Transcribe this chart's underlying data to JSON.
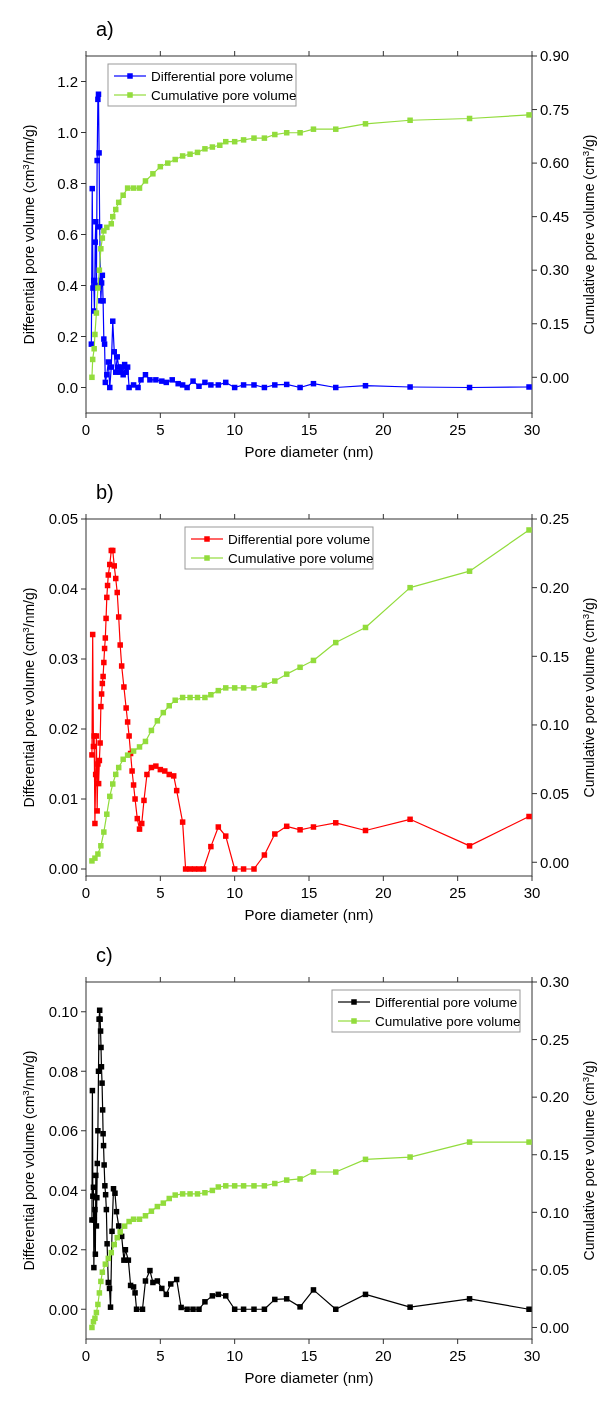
{
  "chart_data": [
    {
      "type": "line",
      "title": "a)",
      "xlabel": "Pore diameter (nm)",
      "ylabel": "Differential pore volume  (cm$^{3}$/nm/g)",
      "y2label": "Cumulative pore volume (cm$^{3}$/g)",
      "xlim": [
        0,
        30
      ],
      "xticks": [
        0,
        5,
        10,
        15,
        20,
        25,
        30
      ],
      "ylim": [
        -0.1,
        1.3
      ],
      "yticks": [
        {
          "value": 0,
          "label": "0.0"
        },
        {
          "value": 0.2,
          "label": "0.2"
        },
        {
          "value": 0.4,
          "label": "0.4"
        },
        {
          "value": 0.6,
          "label": "0.6"
        },
        {
          "value": 0.8,
          "label": "0.8"
        },
        {
          "value": 1,
          "label": "1.0"
        },
        {
          "value": 1.2,
          "label": "1.2"
        }
      ],
      "y2lim": [
        -0.1,
        0.9
      ],
      "y2ticks": [
        {
          "value": 0,
          "label": "0.00"
        },
        {
          "value": 0.15,
          "label": "0.15"
        },
        {
          "value": 0.3,
          "label": "0.30"
        },
        {
          "value": 0.45,
          "label": "0.45"
        },
        {
          "value": 0.6,
          "label": "0.60"
        },
        {
          "value": 0.75,
          "label": "0.75"
        },
        {
          "value": 0.9,
          "label": "0.90"
        }
      ],
      "marker": "square",
      "line_style": "solid",
      "grid": false,
      "legend": "top left",
      "series": [
        {
          "name": "Differential pore volume",
          "color": "#0000ff",
          "x": [
            0.36,
            0.42,
            0.47,
            0.52,
            0.57,
            0.62,
            0.66,
            0.7,
            0.75,
            0.8,
            0.84,
            0.88,
            0.92,
            0.97,
            1.0,
            1.05,
            1.1,
            1.15,
            1.2,
            1.25,
            1.3,
            1.4,
            1.5,
            1.6,
            1.7,
            1.8,
            1.9,
            2.0,
            2.1,
            2.2,
            2.3,
            2.4,
            2.5,
            2.6,
            2.7,
            2.8,
            2.9,
            3.2,
            3.5,
            3.7,
            4.0,
            4.3,
            4.7,
            5.1,
            5.4,
            5.8,
            6.2,
            6.5,
            6.8,
            7.2,
            7.6,
            8.0,
            8.4,
            8.9,
            9.4,
            10.0,
            10.6,
            11.3,
            12.0,
            12.7,
            13.5,
            14.4,
            15.3,
            16.8,
            18.8,
            21.8,
            25.8,
            29.8
          ],
          "values": [
            0.17,
            0.78,
            0.39,
            0.42,
            0.3,
            0.57,
            0.65,
            0.4,
            0.89,
            1.13,
            1.15,
            0.92,
            0.63,
            0.42,
            0.34,
            0.41,
            0.44,
            0.34,
            0.19,
            0.17,
            0.02,
            0.05,
            0.1,
            0.0,
            0.08,
            0.26,
            0.14,
            0.06,
            0.12,
            0.08,
            0.06,
            0.08,
            0.05,
            0.09,
            0.06,
            0.08,
            0.0,
            0.01,
            0.0,
            0.03,
            0.05,
            0.03,
            0.03,
            0.025,
            0.02,
            0.03,
            0.015,
            0.01,
            0.0,
            0.025,
            0.005,
            0.02,
            0.01,
            0.01,
            0.02,
            0.0,
            0.01,
            0.01,
            0.0,
            0.01,
            0.012,
            0.0,
            0.015,
            0.0,
            0.007,
            0.002,
            0.0,
            0.002
          ]
        },
        {
          "name": "Cumulative pore volume",
          "color": "#92dc3c",
          "axis": "y2",
          "x": [
            0.4,
            0.45,
            0.55,
            0.6,
            0.7,
            0.8,
            0.9,
            1.0,
            1.1,
            1.2,
            1.4,
            1.7,
            1.8,
            2.0,
            2.2,
            2.5,
            2.8,
            3.2,
            3.6,
            4.0,
            4.5,
            5.0,
            5.5,
            6.0,
            6.5,
            7.0,
            7.5,
            8.0,
            8.5,
            9.0,
            9.4,
            10.0,
            10.6,
            11.3,
            12.0,
            12.7,
            13.5,
            14.4,
            15.3,
            16.8,
            18.8,
            21.8,
            25.8,
            29.8
          ],
          "values": [
            0.0,
            0.05,
            0.08,
            0.12,
            0.18,
            0.25,
            0.3,
            0.36,
            0.39,
            0.41,
            0.42,
            0.43,
            0.45,
            0.47,
            0.49,
            0.51,
            0.53,
            0.53,
            0.53,
            0.55,
            0.57,
            0.59,
            0.6,
            0.61,
            0.62,
            0.625,
            0.63,
            0.64,
            0.645,
            0.65,
            0.66,
            0.66,
            0.665,
            0.67,
            0.67,
            0.68,
            0.685,
            0.685,
            0.695,
            0.695,
            0.71,
            0.72,
            0.725,
            0.735
          ]
        }
      ]
    },
    {
      "type": "line",
      "title": "b)",
      "xlabel": "Pore diameter (nm)",
      "ylabel": "Differential pore volume  (cm$^{3}$/nm/g)",
      "y2label": "Cumulative pore volume (cm$^{3}$/g)",
      "xlim": [
        0,
        30
      ],
      "xticks": [
        0,
        5,
        10,
        15,
        20,
        25,
        30
      ],
      "ylim": [
        -0.001,
        0.05
      ],
      "yticks": [
        {
          "value": 0,
          "label": "0.00"
        },
        {
          "value": 0.01,
          "label": "0.01"
        },
        {
          "value": 0.02,
          "label": "0.02"
        },
        {
          "value": 0.03,
          "label": "0.03"
        },
        {
          "value": 0.04,
          "label": "0.04"
        },
        {
          "value": 0.05,
          "label": "0.05"
        }
      ],
      "y2lim": [
        -0.01,
        0.25
      ],
      "y2ticks": [
        {
          "value": 0,
          "label": "0.00"
        },
        {
          "value": 0.05,
          "label": "0.05"
        },
        {
          "value": 0.1,
          "label": "0.10"
        },
        {
          "value": 0.15,
          "label": "0.15"
        },
        {
          "value": 0.2,
          "label": "0.20"
        },
        {
          "value": 0.25,
          "label": "0.25"
        }
      ],
      "marker": "square",
      "line_style": "solid",
      "grid": false,
      "legend": "top",
      "series": [
        {
          "name": "Differential pore volume",
          "color": "#ff0000",
          "x": [
            0.4,
            0.45,
            0.5,
            0.55,
            0.6,
            0.65,
            0.7,
            0.75,
            0.8,
            0.85,
            0.9,
            0.95,
            1.0,
            1.05,
            1.1,
            1.15,
            1.2,
            1.25,
            1.3,
            1.35,
            1.4,
            1.45,
            1.5,
            1.6,
            1.7,
            1.8,
            1.9,
            2.0,
            2.1,
            2.2,
            2.3,
            2.4,
            2.55,
            2.7,
            2.8,
            2.9,
            3.0,
            3.1,
            3.2,
            3.3,
            3.45,
            3.6,
            3.75,
            3.9,
            4.1,
            4.4,
            4.7,
            5.0,
            5.3,
            5.6,
            5.9,
            6.1,
            6.5,
            6.7,
            7.0,
            7.3,
            7.6,
            7.9,
            8.4,
            8.9,
            9.4,
            10.0,
            10.6,
            11.3,
            12.0,
            12.7,
            13.5,
            14.4,
            15.3,
            16.8,
            18.8,
            21.8,
            25.8,
            29.8
          ],
          "values": [
            0.0163,
            0.0335,
            0.0175,
            0.019,
            0.0065,
            0.0135,
            0.019,
            0.0083,
            0.015,
            0.0122,
            0.0155,
            0.018,
            0.0232,
            0.025,
            0.0265,
            0.0275,
            0.0295,
            0.0315,
            0.033,
            0.0358,
            0.0388,
            0.0405,
            0.042,
            0.0435,
            0.0455,
            0.0455,
            0.0433,
            0.0415,
            0.0395,
            0.036,
            0.032,
            0.029,
            0.026,
            0.023,
            0.021,
            0.019,
            0.0165,
            0.014,
            0.012,
            0.01,
            0.0072,
            0.0057,
            0.0065,
            0.0098,
            0.0135,
            0.0145,
            0.0147,
            0.0142,
            0.014,
            0.0135,
            0.0133,
            0.0112,
            0.0067,
            0.0,
            0.0,
            0.0,
            0.0,
            0.0,
            0.0032,
            0.006,
            0.0047,
            0.0,
            0.0,
            0.0,
            0.002,
            0.005,
            0.0061,
            0.0056,
            0.006,
            0.0066,
            0.0055,
            0.0071,
            0.0033,
            0.0075
          ]
        },
        {
          "name": "Cumulative pore volume",
          "color": "#92dc3c",
          "axis": "y2",
          "x": [
            0.4,
            0.6,
            0.8,
            1.0,
            1.2,
            1.4,
            1.6,
            1.8,
            2.0,
            2.2,
            2.5,
            2.8,
            3.2,
            3.6,
            4.0,
            4.4,
            4.8,
            5.2,
            5.6,
            6.0,
            6.5,
            7.0,
            7.5,
            8.0,
            8.4,
            8.9,
            9.4,
            10.0,
            10.6,
            11.3,
            12.0,
            12.7,
            13.5,
            14.4,
            15.3,
            16.8,
            18.8,
            21.8,
            25.8,
            29.8
          ],
          "values": [
            0.001,
            0.003,
            0.006,
            0.012,
            0.022,
            0.035,
            0.048,
            0.057,
            0.064,
            0.069,
            0.075,
            0.078,
            0.081,
            0.084,
            0.088,
            0.096,
            0.103,
            0.109,
            0.114,
            0.118,
            0.12,
            0.12,
            0.12,
            0.12,
            0.122,
            0.125,
            0.127,
            0.127,
            0.127,
            0.127,
            0.129,
            0.132,
            0.137,
            0.142,
            0.147,
            0.16,
            0.171,
            0.2,
            0.212,
            0.242
          ]
        }
      ]
    },
    {
      "type": "line",
      "title": "c)",
      "xlabel": "Pore diameter (nm)",
      "ylabel": "Differential pore volume  (cm$^{3}$/nm/g)",
      "y2label": "Cumulative pore volume (cm$^{3}$/g)",
      "xlim": [
        0,
        30
      ],
      "xticks": [
        0,
        5,
        10,
        15,
        20,
        25,
        30
      ],
      "ylim": [
        -0.01,
        0.11
      ],
      "yticks": [
        {
          "value": 0,
          "label": "0.00"
        },
        {
          "value": 0.02,
          "label": "0.02"
        },
        {
          "value": 0.04,
          "label": "0.04"
        },
        {
          "value": 0.06,
          "label": "0.06"
        },
        {
          "value": 0.08,
          "label": "0.08"
        },
        {
          "value": 0.1,
          "label": "0.10"
        }
      ],
      "y2lim": [
        -0.01,
        0.3
      ],
      "y2ticks": [
        {
          "value": 0,
          "label": "0.00"
        },
        {
          "value": 0.05,
          "label": "0.05"
        },
        {
          "value": 0.1,
          "label": "0.10"
        },
        {
          "value": 0.15,
          "label": "0.15"
        },
        {
          "value": 0.2,
          "label": "0.20"
        },
        {
          "value": 0.25,
          "label": "0.25"
        },
        {
          "value": 0.3,
          "label": "0.30"
        }
      ],
      "marker": "square",
      "line_style": "solid",
      "grid": false,
      "legend": "top right",
      "series": [
        {
          "name": "Differential pore volume",
          "color": "#000000",
          "x": [
            0.4,
            0.43,
            0.46,
            0.5,
            0.53,
            0.56,
            0.6,
            0.63,
            0.66,
            0.7,
            0.73,
            0.76,
            0.8,
            0.84,
            0.88,
            0.92,
            0.95,
            0.98,
            1.01,
            1.04,
            1.08,
            1.12,
            1.15,
            1.18,
            1.22,
            1.27,
            1.32,
            1.37,
            1.42,
            1.5,
            1.58,
            1.65,
            1.75,
            1.85,
            1.95,
            2.05,
            2.2,
            2.4,
            2.55,
            2.65,
            2.85,
            3.0,
            3.2,
            3.3,
            3.4,
            3.8,
            4.0,
            4.3,
            4.5,
            4.8,
            5.1,
            5.4,
            5.7,
            6.1,
            6.4,
            6.8,
            7.2,
            7.6,
            8.0,
            8.5,
            8.9,
            9.4,
            10.0,
            10.6,
            11.3,
            12.0,
            12.7,
            13.5,
            14.4,
            15.3,
            16.8,
            18.8,
            21.8,
            25.8,
            29.8
          ],
          "values": [
            0.03,
            0.0735,
            0.038,
            0.041,
            0.014,
            0.03,
            0.0335,
            0.0185,
            0.045,
            0.028,
            0.0375,
            0.049,
            0.06,
            0.08,
            0.0975,
            0.1005,
            0.0975,
            0.0935,
            0.088,
            0.0815,
            0.076,
            0.067,
            0.059,
            0.055,
            0.0485,
            0.0415,
            0.0385,
            0.0335,
            0.022,
            0.009,
            0.007,
            0.0007,
            0.0262,
            0.0405,
            0.039,
            0.0328,
            0.028,
            0.0245,
            0.0165,
            0.02,
            0.0165,
            0.008,
            0.0075,
            0.0055,
            0.0,
            0.0,
            0.0095,
            0.013,
            0.009,
            0.0095,
            0.007,
            0.005,
            0.0085,
            0.01,
            0.0006,
            0.0,
            0.0,
            0.0,
            0.0025,
            0.0045,
            0.005,
            0.0045,
            0.0,
            0.0,
            0.0,
            0.0,
            0.0033,
            0.0035,
            0.0008,
            0.0065,
            0.0,
            0.005,
            0.0007,
            0.0035,
            0.0
          ]
        },
        {
          "name": "Cumulative pore volume",
          "color": "#92dc3c",
          "axis": "y2",
          "x": [
            0.4,
            0.5,
            0.6,
            0.7,
            0.8,
            0.9,
            1.0,
            1.1,
            1.3,
            1.5,
            1.7,
            1.9,
            2.1,
            2.3,
            2.6,
            2.9,
            3.2,
            3.6,
            4.0,
            4.4,
            4.8,
            5.2,
            5.6,
            6.0,
            6.5,
            7.0,
            7.5,
            8.0,
            8.5,
            8.9,
            9.4,
            10.0,
            10.6,
            11.3,
            12.0,
            12.7,
            13.5,
            14.4,
            15.3,
            16.8,
            18.8,
            21.8,
            25.8,
            29.8
          ],
          "values": [
            0.0,
            0.005,
            0.008,
            0.013,
            0.02,
            0.03,
            0.04,
            0.048,
            0.055,
            0.06,
            0.065,
            0.072,
            0.078,
            0.083,
            0.088,
            0.092,
            0.094,
            0.094,
            0.097,
            0.101,
            0.105,
            0.108,
            0.112,
            0.115,
            0.116,
            0.116,
            0.116,
            0.117,
            0.119,
            0.122,
            0.123,
            0.123,
            0.123,
            0.123,
            0.123,
            0.125,
            0.128,
            0.129,
            0.135,
            0.135,
            0.146,
            0.148,
            0.161,
            0.161
          ]
        }
      ]
    }
  ]
}
